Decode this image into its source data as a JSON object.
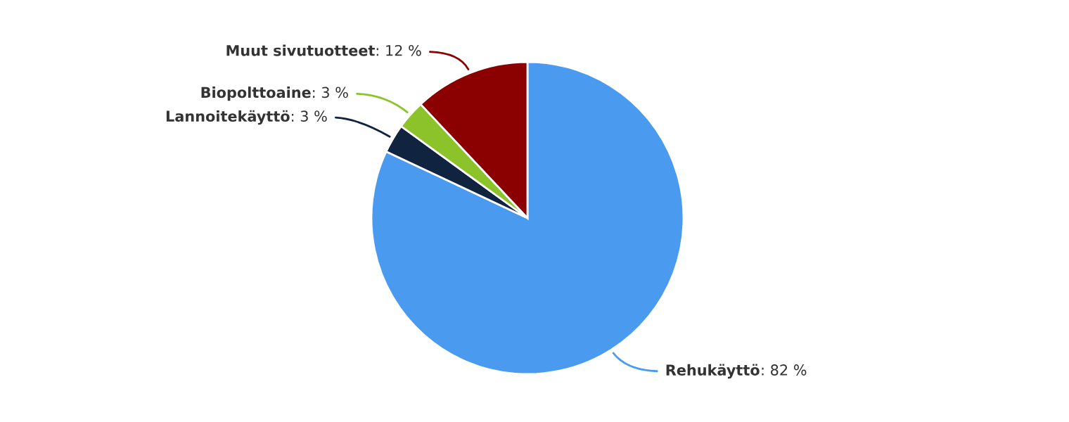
{
  "chart_data": {
    "type": "pie",
    "categories": [
      "Rehukäyttö",
      "Lannoitekäyttö",
      "Biopolttoaine",
      "Muut sivutuotteet"
    ],
    "values": [
      82,
      3,
      3,
      12
    ],
    "value_labels": [
      ": 82 %",
      ": 3 %",
      ": 3 %",
      ": 12 %"
    ],
    "colors": [
      "#4a9af0",
      "#10233f",
      "#8cc32a",
      "#8b0000"
    ],
    "legend": false
  }
}
